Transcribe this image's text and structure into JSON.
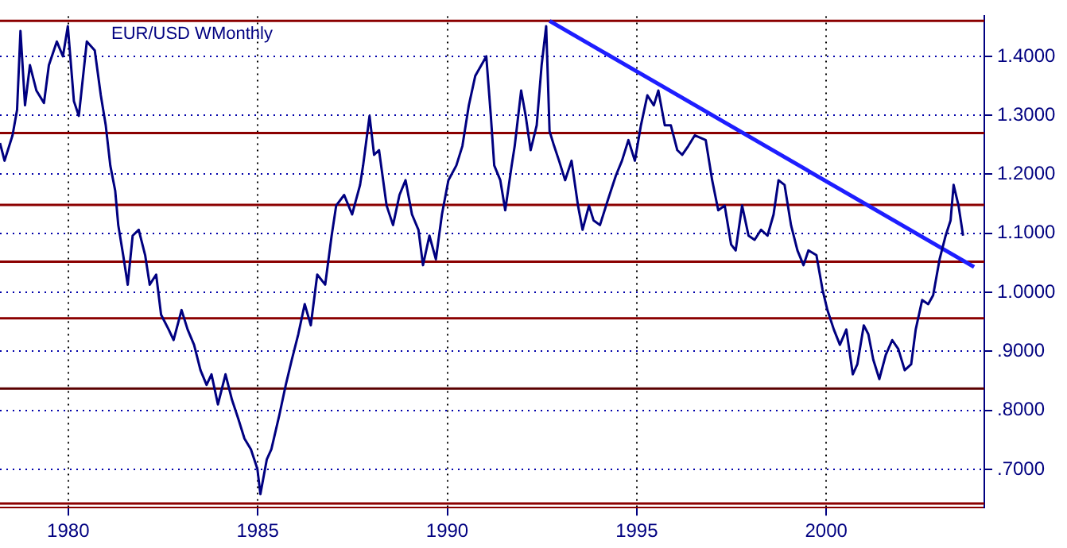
{
  "chart_data": {
    "type": "line",
    "title": "EUR/USD WMonthly",
    "xlim": [
      1978.2,
      2004.17
    ],
    "xticks": [
      1980,
      1985,
      1990,
      1995,
      2000
    ],
    "ylim": [
      0.635,
      1.468
    ],
    "yticks": [
      {
        "value": 0.7,
        "label": ".7000"
      },
      {
        "value": 0.8,
        "label": ".8000"
      },
      {
        "value": 0.9,
        "label": ".9000"
      },
      {
        "value": 1.0,
        "label": "1.0000"
      },
      {
        "value": 1.1,
        "label": "1.1000"
      },
      {
        "value": 1.2,
        "label": "1.2000"
      },
      {
        "value": 1.3,
        "label": "1.3000"
      },
      {
        "value": 1.4,
        "label": "1.4000"
      }
    ],
    "grid": true,
    "marker": "none",
    "line_style": "solid",
    "series": [
      {
        "color": "#000080",
        "x": [
          1978.2,
          1978.32,
          1978.53,
          1978.65,
          1978.74,
          1978.86,
          1978.99,
          1979.16,
          1979.36,
          1979.49,
          1979.7,
          1979.86,
          1979.99,
          1980.15,
          1980.28,
          1980.49,
          1980.7,
          1980.86,
          1980.99,
          1981.11,
          1981.24,
          1981.32,
          1981.45,
          1981.57,
          1981.7,
          1981.86,
          1982.03,
          1982.15,
          1982.32,
          1982.45,
          1982.65,
          1982.78,
          1982.99,
          1983.15,
          1983.32,
          1983.49,
          1983.65,
          1983.78,
          1983.95,
          1984.15,
          1984.32,
          1984.49,
          1984.65,
          1984.82,
          1984.99,
          1985.07,
          1985.24,
          1985.36,
          1985.57,
          1985.74,
          1985.9,
          1986.07,
          1986.24,
          1986.4,
          1986.57,
          1986.78,
          1986.95,
          1987.07,
          1987.28,
          1987.49,
          1987.7,
          1987.78,
          1987.95,
          1988.07,
          1988.2,
          1988.4,
          1988.57,
          1988.74,
          1988.9,
          1989.07,
          1989.24,
          1989.36,
          1989.53,
          1989.7,
          1989.86,
          1990.03,
          1990.24,
          1990.4,
          1990.57,
          1990.74,
          1990.9,
          1991.03,
          1991.15,
          1991.24,
          1991.4,
          1991.53,
          1991.7,
          1991.78,
          1991.95,
          1992.07,
          1992.2,
          1992.36,
          1992.49,
          1992.61,
          1992.7,
          1992.82,
          1992.95,
          1993.11,
          1993.28,
          1993.45,
          1993.57,
          1993.74,
          1993.86,
          1994.03,
          1994.24,
          1994.45,
          1994.61,
          1994.78,
          1994.95,
          1995.11,
          1995.28,
          1995.45,
          1995.57,
          1995.74,
          1995.9,
          1996.07,
          1996.2,
          1996.36,
          1996.53,
          1996.82,
          1996.99,
          1997.15,
          1997.32,
          1997.49,
          1997.61,
          1997.78,
          1997.95,
          1998.11,
          1998.28,
          1998.45,
          1998.61,
          1998.74,
          1998.9,
          1999.07,
          1999.24,
          1999.4,
          1999.53,
          1999.74,
          1999.9,
          2000.03,
          2000.2,
          2000.36,
          2000.53,
          2000.7,
          2000.82,
          2000.99,
          2001.11,
          2001.24,
          2001.4,
          2001.57,
          2001.74,
          2001.9,
          2002.07,
          2002.24,
          2002.36,
          2002.53,
          2002.69,
          2002.82,
          2002.99,
          2003.15,
          2003.28,
          2003.36,
          2003.49,
          2003.61
        ],
        "values": [
          1.253,
          1.223,
          1.266,
          1.309,
          1.443,
          1.317,
          1.385,
          1.342,
          1.321,
          1.385,
          1.425,
          1.4,
          1.451,
          1.324,
          1.299,
          1.425,
          1.41,
          1.334,
          1.283,
          1.215,
          1.172,
          1.114,
          1.063,
          1.013,
          1.096,
          1.106,
          1.063,
          1.013,
          1.03,
          0.962,
          0.937,
          0.919,
          0.97,
          0.937,
          0.911,
          0.868,
          0.843,
          0.861,
          0.81,
          0.861,
          0.818,
          0.785,
          0.752,
          0.734,
          0.701,
          0.658,
          0.717,
          0.734,
          0.792,
          0.843,
          0.886,
          0.929,
          0.98,
          0.944,
          1.03,
          1.013,
          1.096,
          1.147,
          1.165,
          1.132,
          1.182,
          1.215,
          1.299,
          1.233,
          1.241,
          1.147,
          1.114,
          1.165,
          1.19,
          1.132,
          1.106,
          1.046,
          1.096,
          1.056,
          1.132,
          1.19,
          1.215,
          1.248,
          1.317,
          1.367,
          1.385,
          1.4,
          1.299,
          1.215,
          1.19,
          1.139,
          1.215,
          1.248,
          1.342,
          1.299,
          1.241,
          1.283,
          1.385,
          1.451,
          1.273,
          1.248,
          1.223,
          1.19,
          1.223,
          1.147,
          1.106,
          1.147,
          1.122,
          1.114,
          1.157,
          1.198,
          1.223,
          1.258,
          1.223,
          1.283,
          1.334,
          1.317,
          1.342,
          1.283,
          1.283,
          1.241,
          1.233,
          1.248,
          1.266,
          1.258,
          1.19,
          1.139,
          1.147,
          1.081,
          1.071,
          1.147,
          1.096,
          1.089,
          1.106,
          1.096,
          1.132,
          1.19,
          1.182,
          1.114,
          1.071,
          1.046,
          1.071,
          1.063,
          1.005,
          0.97,
          0.937,
          0.911,
          0.937,
          0.861,
          0.878,
          0.944,
          0.929,
          0.886,
          0.853,
          0.894,
          0.919,
          0.904,
          0.868,
          0.878,
          0.937,
          0.987,
          0.98,
          0.995,
          1.056,
          1.096,
          1.122,
          1.182,
          1.147,
          1.096
        ]
      },
      {
        "type": "line",
        "color": "#1e1eff",
        "x": [
          1992.7,
          2003.9
        ],
        "values": [
          1.46,
          1.043
        ]
      }
    ],
    "ref_lines": [
      {
        "axis": "y",
        "value": 1.46,
        "color": "#8b0000"
      },
      {
        "axis": "y",
        "value": 1.27,
        "color": "#8b0000"
      },
      {
        "axis": "y",
        "value": 1.148,
        "color": "#8b0000"
      },
      {
        "axis": "y",
        "value": 1.052,
        "color": "#8b0000"
      },
      {
        "axis": "y",
        "value": 0.956,
        "color": "#8b0000"
      },
      {
        "axis": "y",
        "value": 0.837,
        "color": "#5a0000"
      },
      {
        "axis": "y",
        "value": 0.642,
        "color": "#8b0000"
      }
    ]
  }
}
